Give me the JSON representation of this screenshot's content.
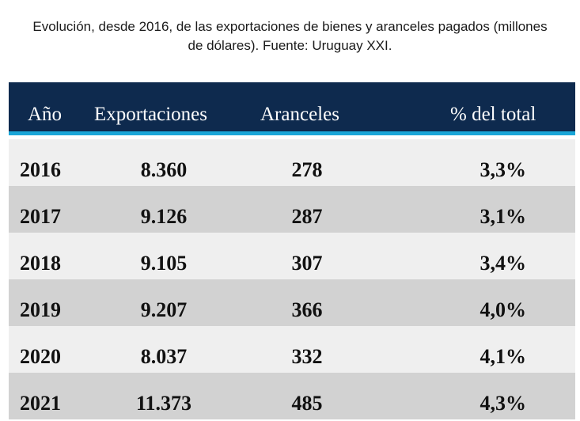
{
  "caption": {
    "line1": "Evolución, desde 2016, de las exportaciones de bienes y aranceles pagados (millones",
    "line2": "de dólares). Fuente: Uruguay XXI."
  },
  "table": {
    "headers": {
      "year": "Año",
      "exports": "Exportaciones",
      "tariffs": "Aranceles",
      "pct": "% del total"
    },
    "rows": [
      {
        "year": "2016",
        "exports": "8.360",
        "tariffs": "278",
        "pct": "3,3%"
      },
      {
        "year": "2017",
        "exports": "9.126",
        "tariffs": "287",
        "pct": "3,1%"
      },
      {
        "year": "2018",
        "exports": "9.105",
        "tariffs": "307",
        "pct": "3,4%"
      },
      {
        "year": "2019",
        "exports": "9.207",
        "tariffs": "366",
        "pct": "4,0%"
      },
      {
        "year": "2020",
        "exports": "8.037",
        "tariffs": "332",
        "pct": "4,1%"
      },
      {
        "year": "2021",
        "exports": "11.373",
        "tariffs": "485",
        "pct": "4,3%"
      }
    ]
  },
  "colors": {
    "header_bg": "#0e2a4e",
    "header_accent": "#1aa6d8",
    "row_light": "#efefef",
    "row_dark": "#d2d2d2"
  }
}
